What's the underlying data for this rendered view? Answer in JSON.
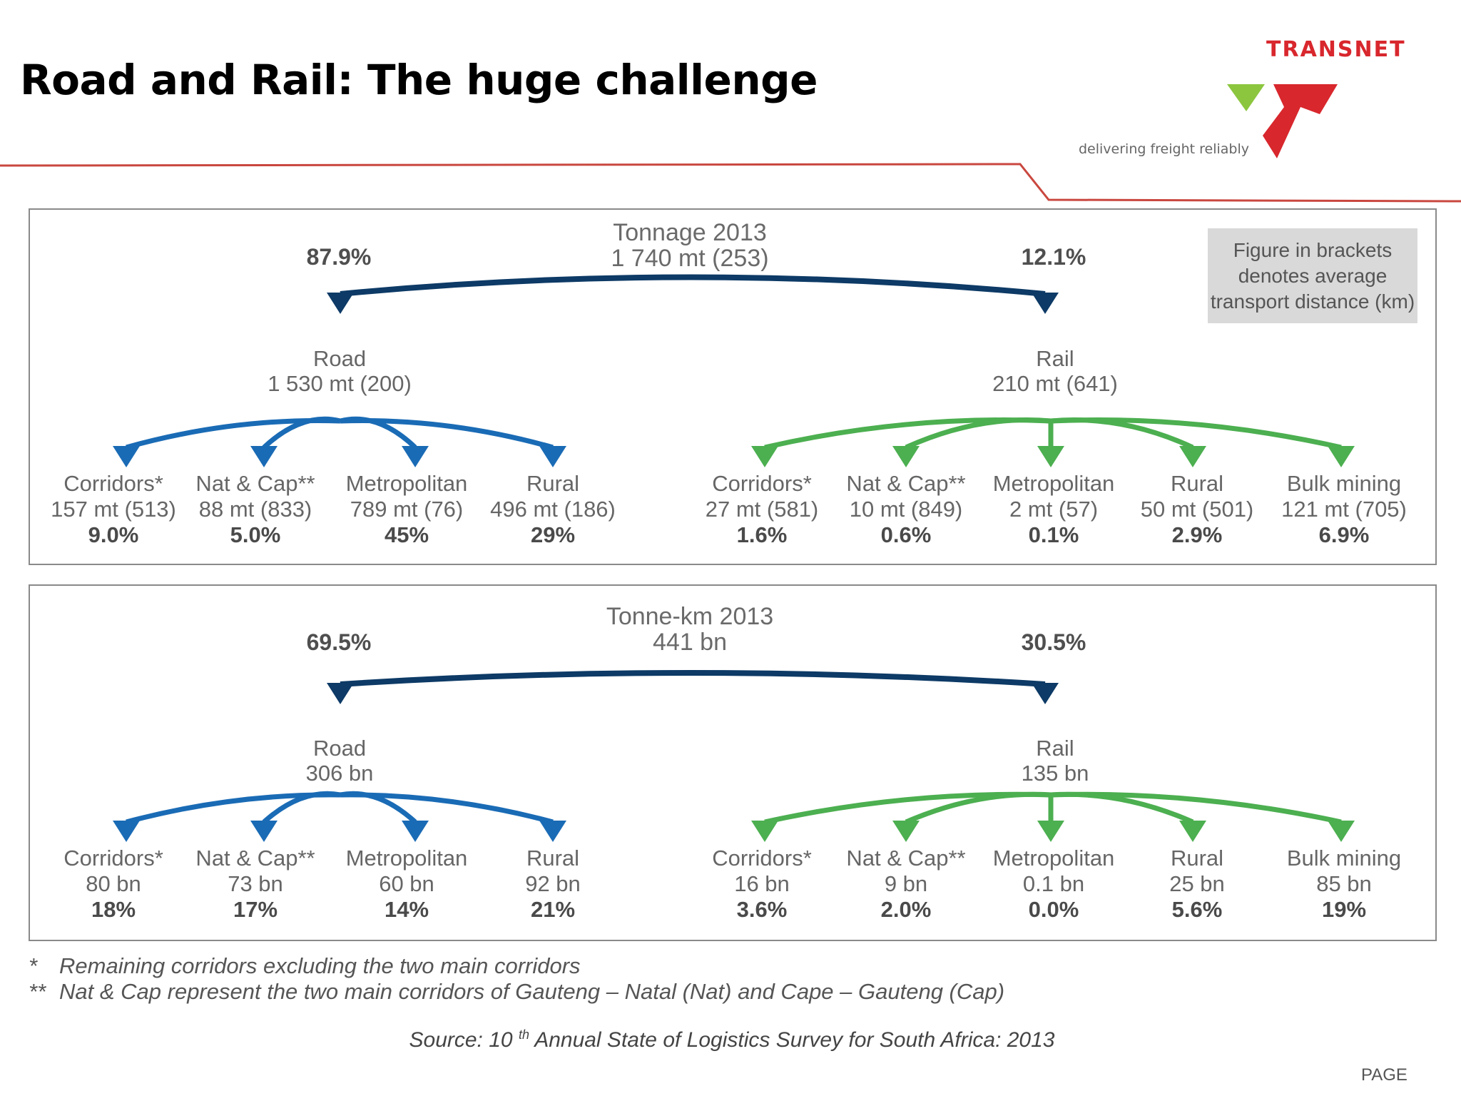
{
  "title": "Road and Rail: The huge challenge",
  "brand": {
    "name": "TRANSNET",
    "tagline": "delivering freight reliably",
    "colors": {
      "red": "#d8272d",
      "green": "#8cc63f"
    }
  },
  "note": {
    "lines": [
      "Figure in brackets",
      "denotes average",
      "transport distance (km)"
    ]
  },
  "colors": {
    "dark_blue": "#0d3a66",
    "blue": "#1a6bb5",
    "green": "#4caf50"
  },
  "panels": [
    {
      "header": {
        "line1": "Tonnage 2013",
        "line2": "1 740 mt (253)"
      },
      "road_pct": "87.9%",
      "rail_pct": "12.1%",
      "road": {
        "label": "Road",
        "value": "1 530 mt (200)"
      },
      "rail": {
        "label": "Rail",
        "value": "210 mt (641)"
      },
      "road_leaves": [
        {
          "name": "Corridors*",
          "value": "157 mt (513)",
          "pct": "9.0%"
        },
        {
          "name": "Nat & Cap**",
          "value": "88 mt (833)",
          "pct": "5.0%"
        },
        {
          "name": "Metropolitan",
          "value": "789 mt (76)",
          "pct": "45%"
        },
        {
          "name": "Rural",
          "value": "496 mt (186)",
          "pct": "29%"
        }
      ],
      "rail_leaves": [
        {
          "name": "Corridors*",
          "value": "27 mt (581)",
          "pct": "1.6%"
        },
        {
          "name": "Nat & Cap**",
          "value": "10 mt (849)",
          "pct": "0.6%"
        },
        {
          "name": "Metropolitan",
          "value": "2 mt (57)",
          "pct": "0.1%"
        },
        {
          "name": "Rural",
          "value": "50 mt (501)",
          "pct": "2.9%"
        },
        {
          "name": "Bulk mining",
          "value": "121 mt (705)",
          "pct": "6.9%"
        }
      ]
    },
    {
      "header": {
        "line1": "Tonne-km 2013",
        "line2": "441 bn"
      },
      "road_pct": "69.5%",
      "rail_pct": "30.5%",
      "road": {
        "label": "Road",
        "value": "306 bn"
      },
      "rail": {
        "label": "Rail",
        "value": "135 bn"
      },
      "road_leaves": [
        {
          "name": "Corridors*",
          "value": "80 bn",
          "pct": "18%"
        },
        {
          "name": "Nat & Cap**",
          "value": "73 bn",
          "pct": "17%"
        },
        {
          "name": "Metropolitan",
          "value": "60 bn",
          "pct": "14%"
        },
        {
          "name": "Rural",
          "value": "92 bn",
          "pct": "21%"
        }
      ],
      "rail_leaves": [
        {
          "name": "Corridors*",
          "value": "16 bn",
          "pct": "3.6%"
        },
        {
          "name": "Nat & Cap**",
          "value": "9 bn",
          "pct": "2.0%"
        },
        {
          "name": "Metropolitan",
          "value": "0.1 bn",
          "pct": "0.0%"
        },
        {
          "name": "Rural",
          "value": "25 bn",
          "pct": "5.6%"
        },
        {
          "name": "Bulk mining",
          "value": "85 bn",
          "pct": "19%"
        }
      ]
    }
  ],
  "footnotes": [
    {
      "mark": "*",
      "text": "Remaining corridors excluding the two main corridors"
    },
    {
      "mark": "**",
      "text": "Nat & Cap represent the two main corridors of Gauteng – Natal (Nat) and Cape – Gauteng (Cap)"
    }
  ],
  "source": {
    "prefix": "Source: 10",
    "sup": "th",
    "suffix": " Annual State of Logistics Survey for South Africa: 2013"
  },
  "page_label": "PAGE"
}
